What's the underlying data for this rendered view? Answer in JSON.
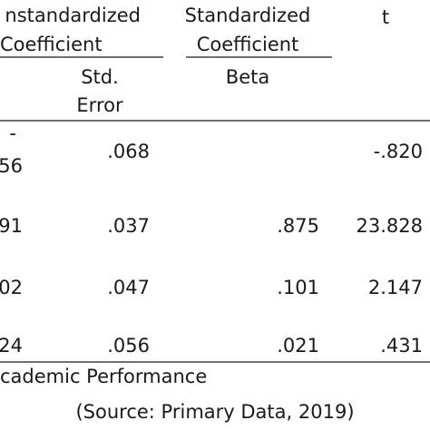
{
  "table": {
    "header": {
      "col1": [
        "nstandardized",
        "Coefficient"
      ],
      "col2": [
        "Standardized",
        "Coefficient"
      ],
      "col3": "t",
      "sub1": [
        "Std.",
        "Error"
      ],
      "sub2": "Beta"
    },
    "rows": [
      [
        [
          "-",
          "56"
        ],
        ".068",
        null,
        "-.820"
      ],
      [
        "91",
        ".037",
        ".875",
        "23.828"
      ],
      [
        "02",
        ".047",
        ".101",
        "2.147"
      ],
      [
        "24",
        ".056",
        ".021",
        ".431"
      ]
    ],
    "footer": [
      "cademic Performance",
      "(Source: Primary Data, 2019)"
    ]
  }
}
